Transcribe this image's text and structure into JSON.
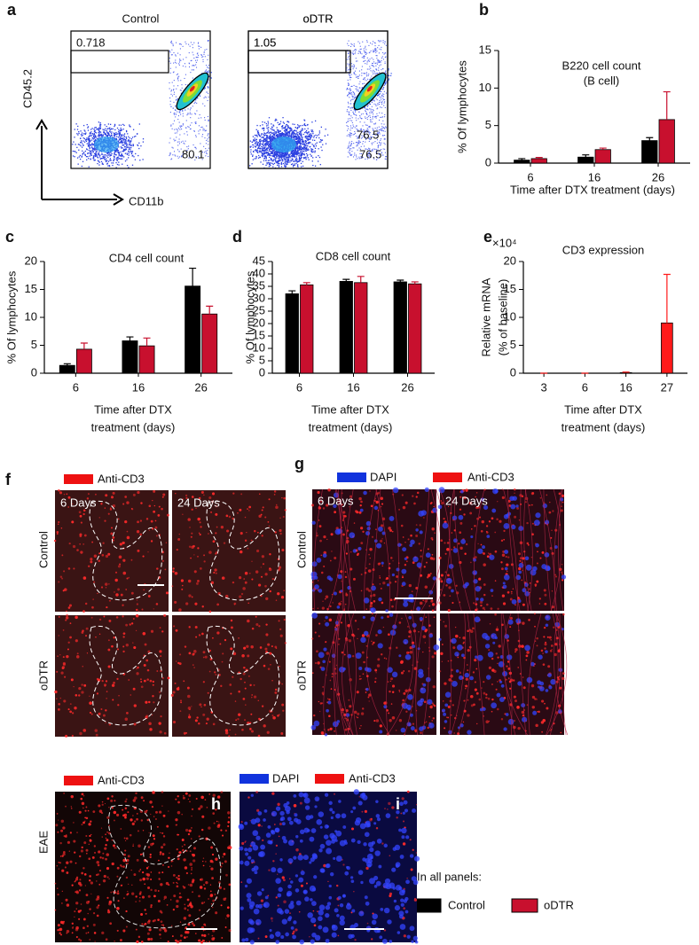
{
  "panel_a": {
    "label": "a",
    "plots": [
      {
        "title": "Control",
        "gate_value": "0.718",
        "population_value": "80.1"
      },
      {
        "title": "oDTR",
        "gate_value": "1.05",
        "population_value": "76.5"
      }
    ],
    "y_axis_label": "CD45.2",
    "x_axis_label": "CD11b"
  },
  "chart_data": [
    {
      "panel_label": "b",
      "type": "bar",
      "title": "B220 cell count",
      "subtitle": "(B cell)",
      "ylabel": "% Of lymphocytes",
      "xlabel": "Time after DTX treatment (days)",
      "categories": [
        "6",
        "16",
        "26"
      ],
      "series": [
        {
          "name": "Control",
          "color": "#000000",
          "values": [
            0.4,
            0.8,
            3.0
          ],
          "errors": [
            0.2,
            0.3,
            0.4
          ]
        },
        {
          "name": "oDTR",
          "color": "#c8102e",
          "values": [
            0.6,
            1.8,
            5.8
          ],
          "errors": [
            0.15,
            0.2,
            3.7
          ]
        }
      ],
      "ylim": [
        0,
        15
      ],
      "yticks": [
        0,
        5,
        10,
        15
      ]
    },
    {
      "panel_label": "c",
      "type": "bar",
      "title": "CD4 cell count",
      "ylabel": "% Of lymphocytes",
      "xlabel": [
        "Time after DTX",
        "treatment (days)"
      ],
      "categories": [
        "6",
        "16",
        "26"
      ],
      "series": [
        {
          "name": "Control",
          "color": "#000000",
          "values": [
            1.4,
            5.8,
            15.6
          ],
          "errors": [
            0.3,
            0.7,
            3.2
          ]
        },
        {
          "name": "oDTR",
          "color": "#c8102e",
          "values": [
            4.3,
            4.9,
            10.6
          ],
          "errors": [
            1.1,
            1.4,
            1.4
          ]
        }
      ],
      "ylim": [
        0,
        20
      ],
      "yticks": [
        0,
        5,
        10,
        15,
        20
      ]
    },
    {
      "panel_label": "d",
      "type": "bar",
      "title": "CD8 cell count",
      "ylabel": "% Of lymphocytes",
      "xlabel": [
        "Time after DTX",
        "treatment (days)"
      ],
      "categories": [
        "6",
        "16",
        "26"
      ],
      "series": [
        {
          "name": "Control",
          "color": "#000000",
          "values": [
            32,
            37,
            36.8
          ],
          "errors": [
            1.2,
            0.8,
            0.7
          ]
        },
        {
          "name": "oDTR",
          "color": "#c8102e",
          "values": [
            35.6,
            36.5,
            36
          ],
          "errors": [
            0.9,
            2.5,
            0.8
          ]
        }
      ],
      "ylim": [
        0,
        45
      ],
      "yticks": [
        0,
        5,
        10,
        15,
        20,
        25,
        30,
        35,
        40,
        45
      ]
    },
    {
      "panel_label": "e",
      "type": "bar",
      "title": "CD3 expression",
      "axis_multiplier": "×10⁴",
      "ylabel": [
        "Relative mRNA",
        "(% of baseline)"
      ],
      "xlabel": [
        "Time after DTX",
        "treatment (days)"
      ],
      "categories": [
        "3",
        "6",
        "16",
        "27"
      ],
      "series": [
        {
          "name": "oDTR",
          "color": "#ff1a1a",
          "values": [
            0,
            0,
            0.1,
            9
          ],
          "errors": [
            0,
            0,
            0.1,
            8.7
          ]
        }
      ],
      "ylim": [
        0,
        20
      ],
      "yticks": [
        0,
        5,
        10,
        15,
        20
      ]
    }
  ],
  "panel_f": {
    "label": "f",
    "stain": "Anti-CD3",
    "columns": [
      "6 Days",
      "24 Days"
    ],
    "rows": [
      "Control",
      "oDTR"
    ]
  },
  "panel_g": {
    "label": "g",
    "stains": [
      "DAPI",
      "Anti-CD3"
    ],
    "columns": [
      "6 Days",
      "24 Days"
    ],
    "rows": [
      "Control",
      "oDTR"
    ]
  },
  "panel_h": {
    "label": "h",
    "stain": "Anti-CD3",
    "row": "EAE"
  },
  "panel_i": {
    "label": "i",
    "stains": [
      "DAPI",
      "Anti-CD3"
    ]
  },
  "legend_heading": "In all panels:"
}
